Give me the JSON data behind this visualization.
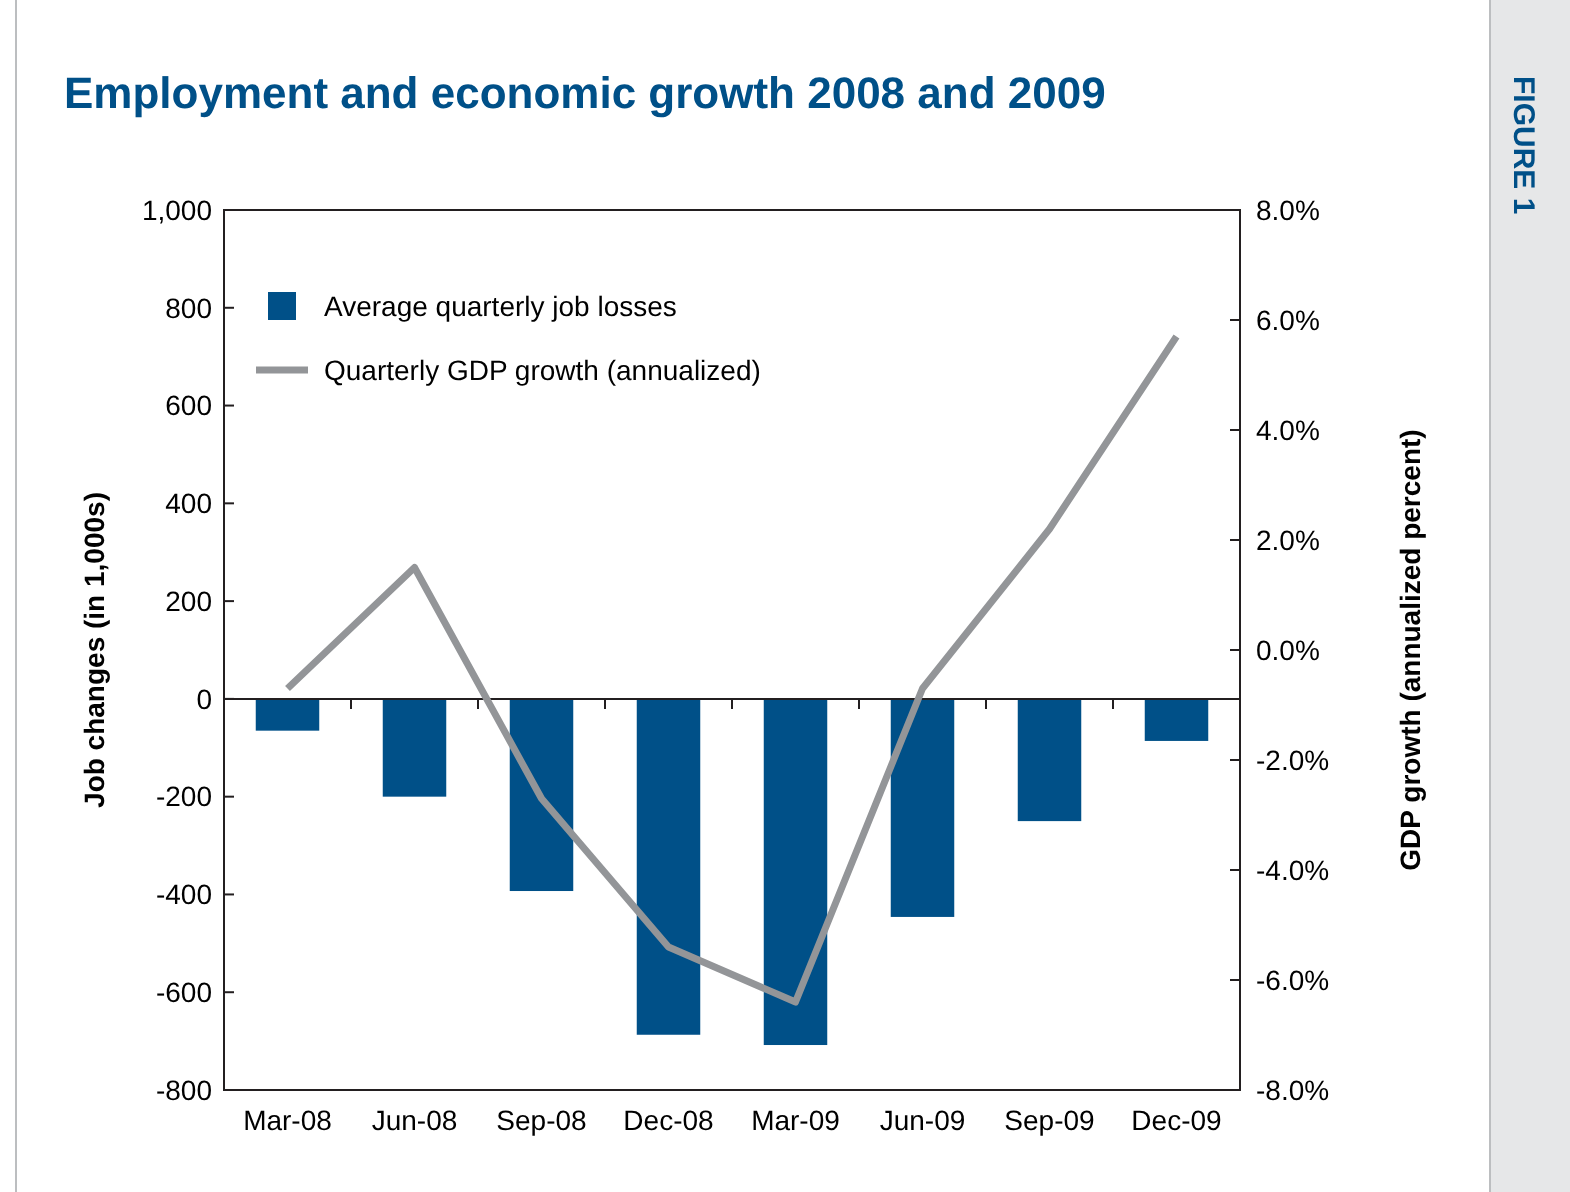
{
  "chart_data": {
    "type": "bar",
    "title": "Employment and economic growth 2008 and 2009",
    "ylabel": "Job changes (in 1,000s)",
    "y2label": "GDP growth (annualized percent)",
    "annotations": [
      "FIGURE 1"
    ],
    "categories": [
      "Mar-08",
      "Jun-08",
      "Sep-08",
      "Dec-08",
      "Mar-09",
      "Jun-09",
      "Sep-09",
      "Dec-09"
    ],
    "series": [
      {
        "name": "Average quarterly job losses",
        "color": "#005088",
        "values": [
          -65,
          -200,
          -393,
          -687,
          -708,
          -446,
          -250,
          -86
        ]
      },
      {
        "name": "Quarterly GDP growth (annualized)",
        "type": "line",
        "axis": "y2",
        "color": "#939598",
        "values": [
          -0.7,
          1.5,
          -2.7,
          -5.4,
          -6.4,
          -0.7,
          2.2,
          5.7
        ]
      }
    ],
    "ylim": [
      -800,
      1000
    ],
    "yticks": [
      -800,
      -600,
      -400,
      -200,
      0,
      200,
      400,
      600,
      800,
      {
        "value": 1000,
        "label": "1,000"
      }
    ],
    "y2lim": [
      -8,
      8
    ],
    "y2ticks": [
      {
        "value": -8,
        "label": "-8.0%"
      },
      {
        "value": -6,
        "label": "-6.0%"
      },
      {
        "value": -4,
        "label": "-4.0%"
      },
      {
        "value": -2,
        "label": "-2.0%"
      },
      {
        "value": 0,
        "label": "0.0%"
      },
      {
        "value": 2,
        "label": "2.0%"
      },
      {
        "value": 4,
        "label": "4.0%"
      },
      {
        "value": 6,
        "label": "6.0%"
      },
      {
        "value": 8,
        "label": "8.0%"
      }
    ],
    "legend": "top left",
    "marker": "none"
  }
}
